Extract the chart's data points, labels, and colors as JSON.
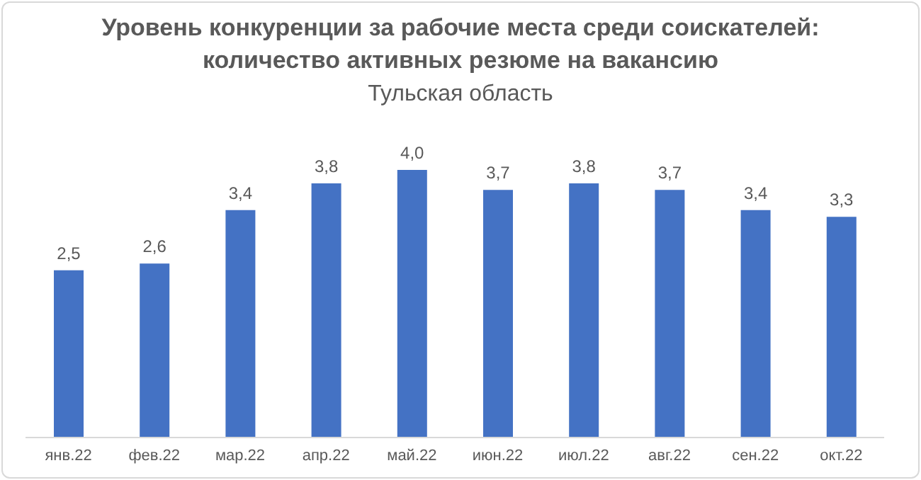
{
  "chart_data": {
    "type": "bar",
    "title": "Уровень конкуренции за рабочие места среди соискателей: количество активных резюме на вакансию",
    "subtitle": "Тульская область",
    "categories": [
      "янв.22",
      "фев.22",
      "мар.22",
      "апр.22",
      "май.22",
      "июн.22",
      "июл.22",
      "авг.22",
      "сен.22",
      "окт.22"
    ],
    "values": [
      2.5,
      2.6,
      3.4,
      3.8,
      4.0,
      3.7,
      3.8,
      3.7,
      3.4,
      3.3
    ],
    "value_labels": [
      "2,5",
      "2,6",
      "3,4",
      "3,8",
      "4,0",
      "3,7",
      "3,8",
      "3,7",
      "3,4",
      "3,3"
    ],
    "color": "#4472c4",
    "grid": false,
    "legend": false
  }
}
